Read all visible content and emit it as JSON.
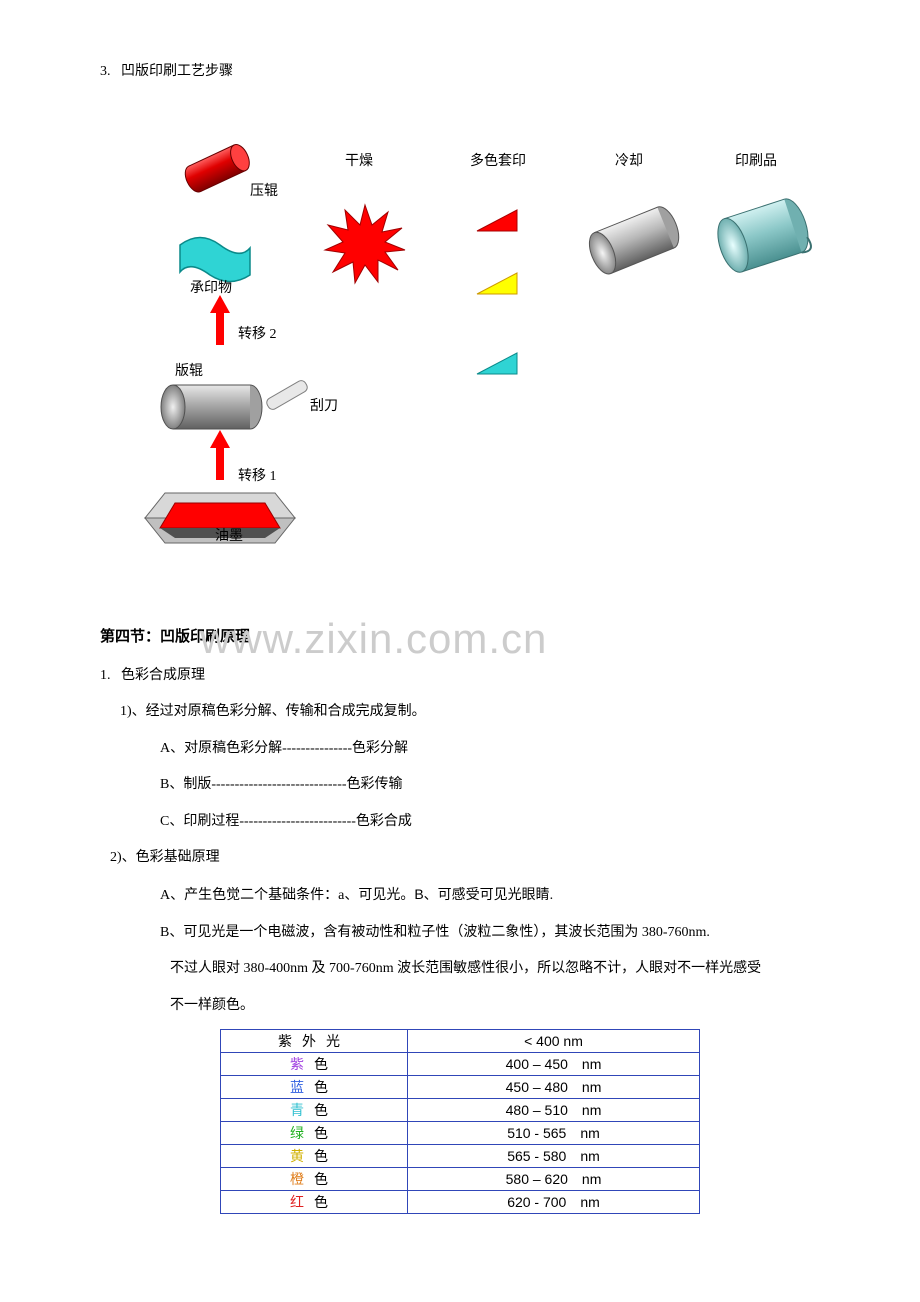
{
  "section3": {
    "num": "3.",
    "title": "凹版印刷工艺步骤"
  },
  "diagram": {
    "labels": {
      "drying": "干燥",
      "multicolor": "多色套印",
      "cooling": "冷却",
      "print": "印刷品",
      "press_roll": "压辊",
      "substrate": "承印物",
      "transfer2": "转移 2",
      "plate_roll": "版辊",
      "scraper": "刮刀",
      "transfer1": "转移 1",
      "ink": "油墨"
    },
    "colors": {
      "red": "#ff0000",
      "cyan": "#2fd4d4",
      "yellow": "#ffff00",
      "gray_light": "#d0d0d0",
      "gray_dark": "#707070",
      "teal_cyl": "#8cc8c8",
      "arrow_red": "#ff0000"
    }
  },
  "section4": {
    "title": "第四节：凹版印刷原理"
  },
  "item1": {
    "num": "1.",
    "title": "色彩合成原理",
    "sub1": "1)、经过对原稿色彩分解、传输和合成完成复制。",
    "a": "A、对原稿色彩分解---------------色彩分解",
    "b": "B、制版-----------------------------色彩传输",
    "c": "C、印刷过程-------------------------色彩合成"
  },
  "item2": {
    "title": "2)、色彩基础原理",
    "a_prefix": "A、产生色觉二个基础条件：a、可见光。",
    "a_b": "B",
    "a_suffix": "、可感受可见光眼睛.",
    "b": "B、可见光是一个电磁波，含有被动性和粒子性（波粒二象性），其波长范围为 380-760nm.",
    "b2": "不过人眼对 380-400nm 及 700-760nm 波长范围敏感性很小，所以忽略不计，人眼对不一样光感受",
    "b3": "不一样颜色。"
  },
  "table": {
    "rows": [
      {
        "name_first": "紫",
        "name_mid": "外",
        "name_last": "光",
        "color": "#000000",
        "range": "< 400 nm"
      },
      {
        "name_first": "紫",
        "name_last": "色",
        "color": "#a040e0",
        "range": "400 – 450　nm"
      },
      {
        "name_first": "蓝",
        "name_last": "色",
        "color": "#3060e0",
        "range": "450 – 480　nm"
      },
      {
        "name_first": "青",
        "name_last": "色",
        "color": "#30c0d0",
        "range": "480 – 510　nm"
      },
      {
        "name_first": "绿",
        "name_last": "色",
        "color": "#20b020",
        "range": "510 - 565　nm"
      },
      {
        "name_first": "黄",
        "name_last": "色",
        "color": "#d0b000",
        "range": "565 - 580　nm"
      },
      {
        "name_first": "橙",
        "name_last": "色",
        "color": "#e08020",
        "range": "580 – 620　nm"
      },
      {
        "name_first": "红",
        "name_last": "色",
        "color": "#e02020",
        "range": "620 - 700　nm"
      }
    ]
  },
  "watermark": "www.zixin.com.cn"
}
